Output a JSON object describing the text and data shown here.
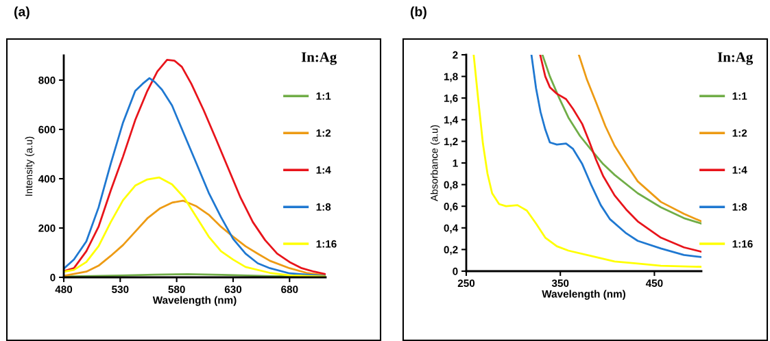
{
  "chart_data": [
    {
      "type": "line",
      "title": "(a)",
      "xlabel": "Wavelength (nm)",
      "ylabel": "Intensity (a.u)",
      "legend_title": "In:Ag",
      "legend": "right",
      "grid": false,
      "marker": "none",
      "line_style": "solid",
      "xlim": [
        480,
        712
      ],
      "xticks": [
        480,
        530,
        580,
        630,
        680
      ],
      "ylim": [
        0,
        900
      ],
      "yticks": [
        0,
        200,
        400,
        600,
        800
      ],
      "series": [
        {
          "name": "1:1",
          "color": "#70ad47",
          "x": [
            480,
            530,
            560,
            590,
            620,
            660,
            712
          ],
          "values": [
            3,
            7,
            11,
            13,
            10,
            5,
            2
          ]
        },
        {
          "name": "1:2",
          "color": "#ed9b14",
          "x": [
            480,
            500,
            510.8,
            521.6,
            532.5,
            543.3,
            554,
            565,
            575.9,
            585.6,
            597.6,
            608.4,
            619.3,
            630,
            641,
            651.8,
            662.6,
            680,
            695,
            712
          ],
          "values": [
            6,
            23,
            47,
            87,
            131,
            185,
            239,
            279,
            303,
            311,
            288,
            254,
            205,
            165,
            126,
            96,
            67,
            37,
            18,
            8
          ]
        },
        {
          "name": "1:4",
          "color": "#e8141b",
          "x": [
            480,
            489,
            500,
            510.8,
            521.6,
            532.5,
            543.3,
            554,
            562.9,
            571.5,
            578,
            584.6,
            593,
            604,
            615,
            625.8,
            636.6,
            647.5,
            658.3,
            669,
            680,
            690.8,
            701.7,
            712
          ],
          "values": [
            25,
            37,
            106,
            205,
            352,
            490,
            638,
            756,
            835,
            882,
            879,
            854,
            785,
            677,
            559,
            441,
            323,
            224,
            151,
            96,
            62,
            37,
            23,
            13
          ]
        },
        {
          "name": "1:8",
          "color": "#1f78d1",
          "x": [
            480,
            489,
            500,
            510.8,
            521.6,
            532.5,
            543.3,
            549.8,
            555.9,
            560.7,
            567,
            575.9,
            586.7,
            597.6,
            608.4,
            619.3,
            630,
            641,
            651.8,
            662.6,
            680,
            712
          ],
          "values": [
            35,
            72,
            146,
            283,
            461,
            628,
            756,
            785,
            808,
            792,
            761,
            697,
            579,
            461,
            343,
            244,
            156,
            96,
            57,
            37,
            16,
            5
          ]
        },
        {
          "name": "1:16",
          "color": "#ffff00",
          "x": [
            480,
            489,
            500,
            510.8,
            521.6,
            532.5,
            543.3,
            554,
            564.6,
            575.9,
            586.7,
            597.6,
            608.4,
            619.3,
            630,
            641,
            662.6,
            680,
            712
          ],
          "values": [
            23,
            30,
            62,
            126,
            224,
            313,
            372,
            397,
            405,
            377,
            323,
            244,
            165,
            106,
            72,
            42,
            18,
            8,
            3
          ]
        }
      ]
    },
    {
      "type": "line",
      "title": "(b)",
      "xlabel": "Wavelength (nm)",
      "ylabel": "Absorbance (a.u)",
      "legend_title": "In:Ag",
      "legend": "right",
      "grid": false,
      "marker": "none",
      "line_style": "solid",
      "xlim": [
        250,
        500
      ],
      "xticks": [
        250,
        350,
        450
      ],
      "ylim": [
        0,
        2
      ],
      "yticks": [
        0,
        {
          "value": 0.2,
          "label": "0,2"
        },
        {
          "value": 0.4,
          "label": "0,4"
        },
        {
          "value": 0.6,
          "label": "0,6"
        },
        {
          "value": 0.8,
          "label": "0,8"
        },
        1,
        {
          "value": 1.2,
          "label": "1,2"
        },
        {
          "value": 1.4,
          "label": "1,4"
        },
        {
          "value": 1.6,
          "label": "1,6"
        },
        {
          "value": 1.8,
          "label": "1,8"
        },
        2
      ],
      "series": [
        {
          "name": "1:1",
          "color": "#70ad47",
          "x": [
            331,
            338.9,
            348.8,
            358.6,
            370.9,
            383,
            395.5,
            407.7,
            432.3,
            456.9,
            481.4,
            500
          ],
          "values": [
            2,
            1.8,
            1.6,
            1.42,
            1.25,
            1.12,
            0.99,
            0.89,
            0.72,
            0.59,
            0.49,
            0.44
          ]
        },
        {
          "name": "1:2",
          "color": "#ed9b14",
          "x": [
            369.7,
            378.3,
            388,
            397.9,
            407.7,
            420,
            432.3,
            456.9,
            481.4,
            500
          ],
          "values": [
            2,
            1.77,
            1.56,
            1.34,
            1.16,
            0.99,
            0.83,
            0.64,
            0.53,
            0.46
          ]
        },
        {
          "name": "1:4",
          "color": "#e8141b",
          "x": [
            328.6,
            334,
            338.9,
            346.3,
            356.1,
            363.5,
            373.3,
            380.7,
            388,
            395.5,
            407.7,
            420,
            432.3,
            456.9,
            481.4,
            500
          ],
          "values": [
            2,
            1.8,
            1.7,
            1.64,
            1.59,
            1.5,
            1.36,
            1.2,
            1.03,
            0.88,
            0.7,
            0.57,
            0.46,
            0.31,
            0.22,
            0.18
          ]
        },
        {
          "name": "1:8",
          "color": "#1f78d1",
          "x": [
            319.3,
            324.2,
            329,
            334,
            338.9,
            346.3,
            356.1,
            363.5,
            373.3,
            383.2,
            393,
            402.8,
            420,
            432.3,
            456.9,
            481.4,
            500
          ],
          "values": [
            2,
            1.69,
            1.47,
            1.31,
            1.19,
            1.17,
            1.18,
            1.13,
            0.99,
            0.79,
            0.61,
            0.48,
            0.35,
            0.28,
            0.21,
            0.15,
            0.13
          ]
        },
        {
          "name": "1:16",
          "color": "#ffff00",
          "x": [
            257.9,
            262.8,
            267.7,
            272.6,
            277.5,
            284.9,
            292.3,
            304.5,
            314.4,
            324.2,
            334,
            346.3,
            358.6,
            383,
            407.7,
            432.3,
            456.9,
            500
          ],
          "values": [
            2,
            1.58,
            1.18,
            0.9,
            0.72,
            0.62,
            0.6,
            0.61,
            0.56,
            0.44,
            0.31,
            0.23,
            0.19,
            0.14,
            0.09,
            0.07,
            0.05,
            0.04
          ]
        }
      ]
    }
  ]
}
